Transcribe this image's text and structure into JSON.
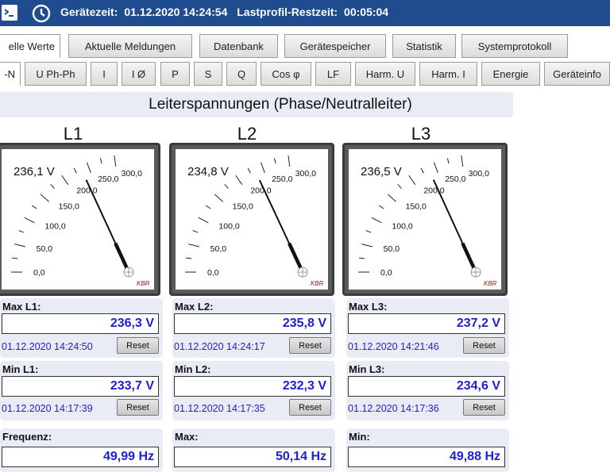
{
  "header": {
    "device_time_label": "Gerätezeit:",
    "device_time": "01.12.2020 14:24:54",
    "profile_label": "Lastprofil-Restzeit:",
    "profile_time": "00:05:04",
    "bg_color": "#1f4c8f"
  },
  "tabs_main": [
    {
      "label": "elle Werte",
      "active": true
    },
    {
      "label": "Aktuelle Meldungen"
    },
    {
      "label": "Datenbank"
    },
    {
      "label": "Gerätespeicher"
    },
    {
      "label": "Statistik"
    },
    {
      "label": "Systemprotokoll"
    }
  ],
  "tabs_sub": [
    {
      "label": "-N",
      "active": true
    },
    {
      "label": "U Ph-Ph"
    },
    {
      "label": "I"
    },
    {
      "label": "I Ø"
    },
    {
      "label": "P"
    },
    {
      "label": "S"
    },
    {
      "label": "Q"
    },
    {
      "label": "Cos φ"
    },
    {
      "label": "LF"
    },
    {
      "label": "Harm. U"
    },
    {
      "label": "Harm. I"
    },
    {
      "label": "Energie"
    },
    {
      "label": "Geräteinfo"
    }
  ],
  "title": "Leiterspannungen (Phase/Neutralleiter)",
  "scale_labels": [
    "0,0",
    "50,0",
    "100,0",
    "150,0",
    "200,0",
    "250,0",
    "300,0"
  ],
  "brand": "KBR",
  "meters": [
    {
      "phase": "L1",
      "reading": "236,1 V",
      "needle_value": 236.1,
      "max_label": "Max L1:",
      "max_value": "236,3 V",
      "max_time": "01.12.2020 14:24:50",
      "min_label": "Min L1:",
      "min_value": "233,7 V",
      "min_time": "01.12.2020 14:17:39"
    },
    {
      "phase": "L2",
      "reading": "234,8 V",
      "needle_value": 234.8,
      "max_label": "Max L2:",
      "max_value": "235,8 V",
      "max_time": "01.12.2020 14:24:17",
      "min_label": "Min L2:",
      "min_value": "232,3 V",
      "min_time": "01.12.2020 14:17:35"
    },
    {
      "phase": "L3",
      "reading": "236,5 V",
      "needle_value": 236.5,
      "max_label": "Max L3:",
      "max_value": "237,2 V",
      "max_time": "01.12.2020 14:21:46",
      "min_label": "Min L3:",
      "min_value": "234,6 V",
      "min_time": "01.12.2020 14:17:36"
    }
  ],
  "reset_label": "Reset",
  "frequency": [
    {
      "label": "Frequenz:",
      "value": "49,99 Hz"
    },
    {
      "label": "Max:",
      "value": "50,14 Hz"
    },
    {
      "label": "Min:",
      "value": "49,88 Hz"
    }
  ]
}
